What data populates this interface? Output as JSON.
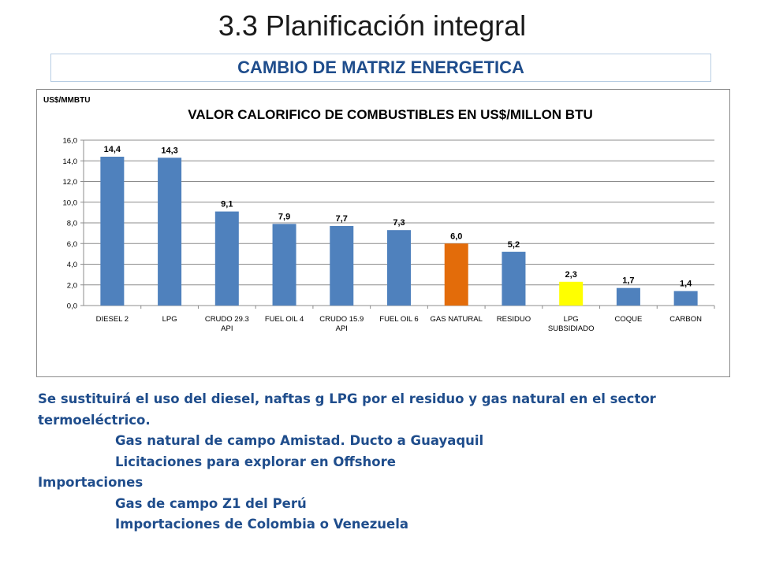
{
  "slide": {
    "title": "3.3 Planificación integral",
    "subtitle": "CAMBIO DE MATRIZ ENERGETICA"
  },
  "colors": {
    "bar_default": "#4f81bd",
    "bar_highlight_orange": "#e36c0a",
    "bar_highlight_yellow": "#ffff00",
    "subtitle_text": "#1f4d8c",
    "body_text": "#1f4d8c",
    "gridline": "#8c8c8c"
  },
  "chart_data": {
    "type": "bar",
    "title": "VALOR CALORIFICO DE COMBUSTIBLES EN US$/MILLON BTU",
    "ylabel": "US$/MMBTU",
    "xlabel": "",
    "ylim": [
      0,
      16
    ],
    "yticks": [
      "0,0",
      "2,0",
      "4,0",
      "6,0",
      "8,0",
      "10,0",
      "12,0",
      "14,0",
      "16,0"
    ],
    "grid": true,
    "categories": [
      [
        "DIESEL 2"
      ],
      [
        "LPG"
      ],
      [
        "CRUDO 29.3",
        "API"
      ],
      [
        "FUEL OIL 4"
      ],
      [
        "CRUDO 15.9",
        "API"
      ],
      [
        "FUEL OIL 6"
      ],
      [
        "GAS NATURAL"
      ],
      [
        "RESIDUO"
      ],
      [
        "LPG",
        "SUBSIDIADO"
      ],
      [
        "COQUE"
      ],
      [
        "CARBON"
      ]
    ],
    "values": [
      14.4,
      14.3,
      9.1,
      7.9,
      7.7,
      7.3,
      6.0,
      5.2,
      2.3,
      1.7,
      1.4
    ],
    "data_labels": [
      "14,4",
      "14,3",
      "9,1",
      "7,9",
      "7,7",
      "7,3",
      "6,0",
      "5,2",
      "2,3",
      "1,7",
      "1,4"
    ],
    "bar_colors": [
      "#4f81bd",
      "#4f81bd",
      "#4f81bd",
      "#4f81bd",
      "#4f81bd",
      "#4f81bd",
      "#e36c0a",
      "#4f81bd",
      "#ffff00",
      "#4f81bd",
      "#4f81bd"
    ]
  },
  "body": {
    "line1": "Se sustituirá el uso del diesel,  naftas g LPG por el residuo y gas natural en el sector",
    "line2": "termoeléctrico.",
    "line3": "Gas natural de campo Amistad. Ducto a Guayaquil",
    "line4": "Licitaciones para explorar en Offshore",
    "line5": "Importaciones",
    "line6": "Gas de campo Z1 del Perú",
    "line7": "Importaciones de Colombia o Venezuela"
  }
}
